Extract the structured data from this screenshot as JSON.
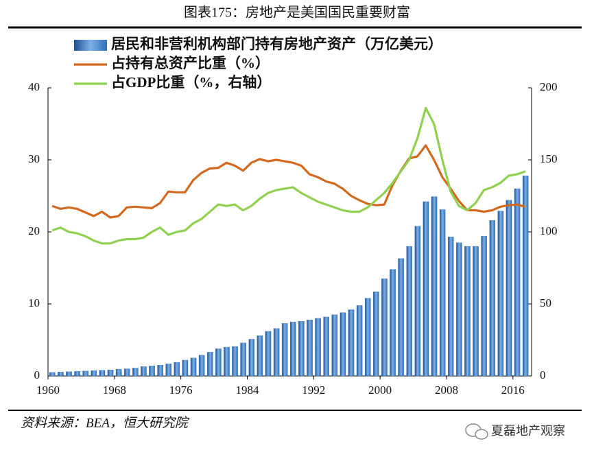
{
  "title": "图表175：房地产是美国国民重要财富",
  "source": "资料来源：BEA，恒大研究院",
  "watermark": "夏磊地产观察",
  "chart_data": {
    "type": "bar",
    "x": [
      1960,
      1961,
      1962,
      1963,
      1964,
      1965,
      1966,
      1967,
      1968,
      1969,
      1970,
      1971,
      1972,
      1973,
      1974,
      1975,
      1976,
      1977,
      1978,
      1979,
      1980,
      1981,
      1982,
      1983,
      1984,
      1985,
      1986,
      1987,
      1988,
      1989,
      1990,
      1991,
      1992,
      1993,
      1994,
      1995,
      1996,
      1997,
      1998,
      1999,
      2000,
      2001,
      2002,
      2003,
      2004,
      2005,
      2006,
      2007,
      2008,
      2009,
      2010,
      2011,
      2012,
      2013,
      2014,
      2015,
      2016,
      2017
    ],
    "xlim": [
      1960,
      2018
    ],
    "xticks": [
      1960,
      1968,
      1976,
      1984,
      1992,
      2000,
      2008,
      2016
    ],
    "ylim": [
      0,
      40
    ],
    "yticks": [
      0,
      10,
      20,
      30,
      40
    ],
    "y2lim": [
      0,
      200
    ],
    "y2ticks": [
      0,
      50,
      100,
      150,
      200
    ],
    "series": [
      {
        "name": "居民和非营利机构部门持有房地产资产（万亿美元）",
        "type": "bar",
        "color": "#2f6fb8",
        "values": [
          0.5,
          0.55,
          0.6,
          0.65,
          0.7,
          0.75,
          0.8,
          0.85,
          0.95,
          1.0,
          1.1,
          1.3,
          1.4,
          1.5,
          1.7,
          1.9,
          2.2,
          2.5,
          2.9,
          3.3,
          3.8,
          4.0,
          4.1,
          4.6,
          5.1,
          5.6,
          6.2,
          6.6,
          7.3,
          7.5,
          7.6,
          7.8,
          8.0,
          8.2,
          8.5,
          8.8,
          9.2,
          9.8,
          10.8,
          11.7,
          13.5,
          14.8,
          16.3,
          18.0,
          20.8,
          24.2,
          24.9,
          23.1,
          19.3,
          18.5,
          18.0,
          18.0,
          19.4,
          21.6,
          22.9,
          24.4,
          26.0,
          27.8
        ]
      },
      {
        "name": "占持有总资产比重（%）",
        "type": "line",
        "color": "#d2691e",
        "values": [
          23.6,
          23.2,
          23.4,
          23.2,
          22.7,
          22.2,
          22.8,
          22.0,
          22.2,
          23.4,
          23.5,
          23.4,
          23.3,
          24.0,
          25.6,
          25.5,
          25.5,
          27.2,
          28.2,
          28.8,
          28.9,
          29.6,
          29.2,
          28.5,
          29.6,
          30.1,
          29.8,
          30.0,
          29.8,
          29.6,
          29.2,
          28.0,
          27.6,
          27.0,
          26.7,
          26.0,
          25.0,
          24.4,
          23.9,
          23.7,
          23.8,
          26.5,
          28.5,
          30.2,
          30.5,
          32.0,
          30.0,
          27.6,
          26.0,
          24.3,
          23.0,
          23.0,
          22.8,
          23.0,
          23.5,
          23.7,
          23.8,
          23.5
        ]
      },
      {
        "name": "占GDP比重（%，右轴）",
        "type": "line",
        "axis": "y2",
        "color": "#8fd14f",
        "values": [
          101,
          103,
          100,
          99,
          97,
          94,
          92,
          92,
          94,
          95,
          95,
          96,
          100,
          103,
          98,
          100,
          101,
          106,
          109,
          114,
          119,
          118,
          119,
          115,
          118,
          123,
          127,
          129,
          130,
          131,
          127,
          124,
          121,
          119,
          117,
          115,
          114,
          114,
          117,
          122,
          127,
          134,
          142,
          150,
          165,
          186,
          175,
          150,
          128,
          118,
          115,
          120,
          129,
          131,
          134,
          139,
          140,
          142
        ]
      }
    ]
  }
}
